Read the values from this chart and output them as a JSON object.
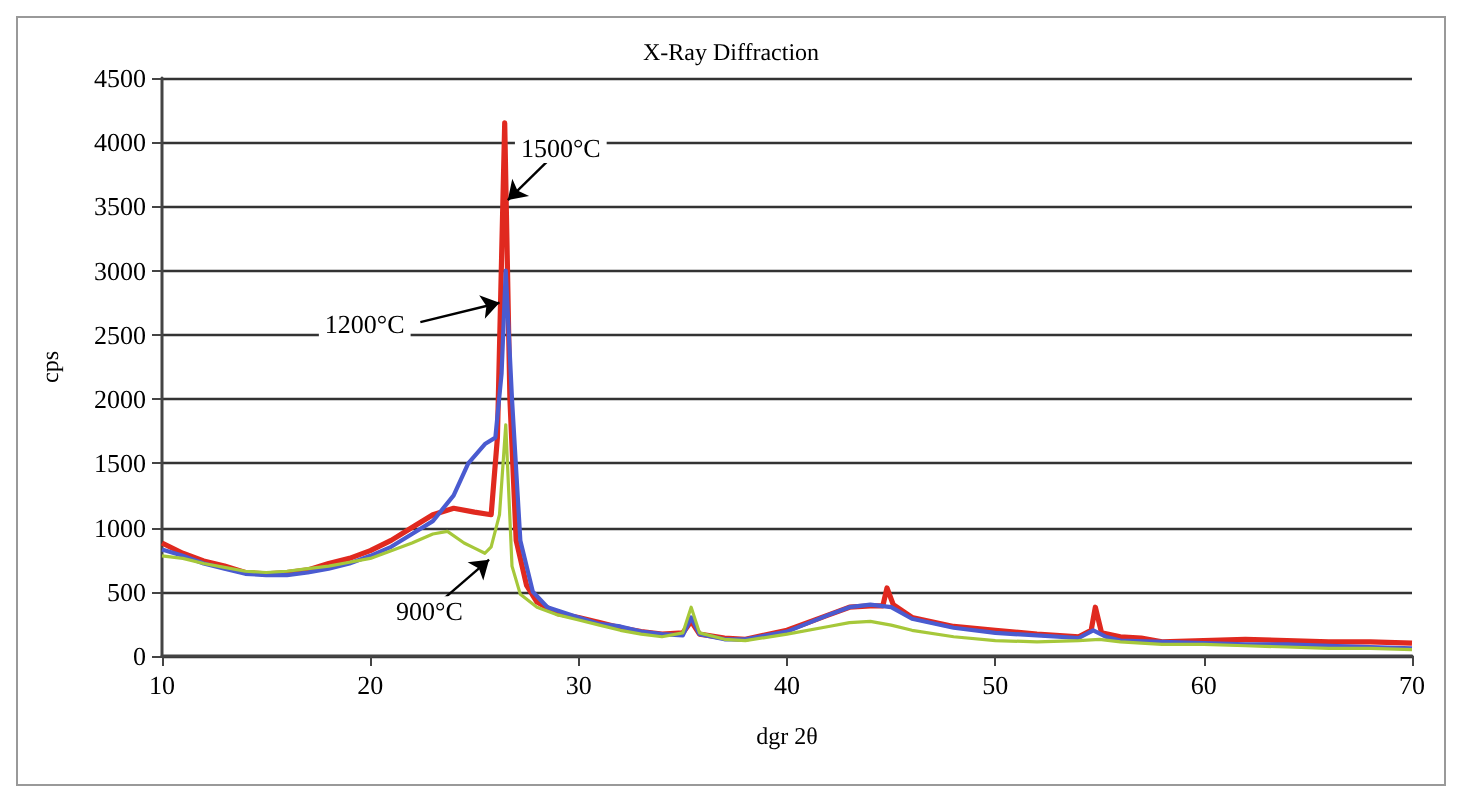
{
  "chart_data": {
    "type": "line",
    "title": "X-Ray Diffraction",
    "xlabel": "dgr 2θ",
    "ylabel": "cps",
    "xlim": [
      10,
      70
    ],
    "xticks": [
      10,
      20,
      30,
      40,
      50,
      60,
      70
    ],
    "ylim": [
      0,
      4500
    ],
    "yticks": [
      0,
      500,
      1000,
      1500,
      2000,
      2500,
      3000,
      3500,
      4000,
      4500
    ],
    "grid": "y",
    "marker": "none",
    "line_style": "solid",
    "series": [
      {
        "color": "#e0291f",
        "x": [
          10,
          11,
          12,
          13,
          14,
          15,
          16,
          17,
          18,
          19,
          20,
          21,
          22,
          23,
          24,
          25,
          25.8,
          26.1,
          26.45,
          26.7,
          27,
          27.5,
          28,
          29,
          30,
          31,
          32,
          33,
          34,
          35,
          35.4,
          35.8,
          37,
          38,
          40,
          42,
          43,
          44,
          44.6,
          44.8,
          45.1,
          46,
          48,
          50,
          52,
          54,
          54.6,
          54.8,
          55.1,
          56,
          57,
          58,
          60,
          62,
          64,
          66,
          68,
          70
        ],
        "values": [
          880,
          800,
          740,
          700,
          650,
          640,
          650,
          670,
          720,
          760,
          820,
          900,
          1000,
          1100,
          1150,
          1120,
          1100,
          1700,
          4150,
          2000,
          900,
          550,
          420,
          330,
          300,
          260,
          220,
          190,
          170,
          180,
          270,
          170,
          140,
          130,
          200,
          320,
          380,
          390,
          390,
          530,
          400,
          300,
          230,
          200,
          170,
          150,
          200,
          380,
          180,
          150,
          140,
          110,
          120,
          130,
          120,
          110,
          110,
          100
        ]
      },
      {
        "color": "#4a5bd0",
        "x": [
          10,
          11,
          12,
          13,
          14,
          15,
          16,
          17,
          18,
          19,
          20,
          21,
          22,
          23,
          24,
          24.7,
          25.5,
          26,
          26.3,
          26.5,
          26.8,
          27.2,
          27.8,
          28.5,
          30,
          31,
          32,
          33,
          34,
          35,
          35.4,
          35.8,
          37,
          38,
          40,
          42,
          43,
          44,
          45,
          46,
          48,
          50,
          52,
          54,
          54.7,
          55.3,
          56,
          58,
          60,
          62,
          64,
          66,
          68,
          70
        ],
        "values": [
          830,
          780,
          720,
          680,
          640,
          630,
          630,
          650,
          680,
          720,
          780,
          850,
          950,
          1050,
          1250,
          1500,
          1650,
          1700,
          2200,
          3000,
          2000,
          900,
          500,
          380,
          300,
          250,
          230,
          190,
          170,
          160,
          300,
          170,
          130,
          130,
          190,
          320,
          380,
          400,
          380,
          290,
          220,
          180,
          160,
          140,
          200,
          150,
          120,
          110,
          100,
          90,
          90,
          80,
          70,
          60
        ]
      },
      {
        "color": "#a6c83a",
        "x": [
          10,
          11,
          12,
          13,
          14,
          15,
          16,
          17,
          18,
          19,
          20,
          21,
          22,
          23,
          23.7,
          24.5,
          25,
          25.5,
          25.8,
          26.2,
          26.5,
          26.8,
          27.2,
          28,
          29,
          30,
          31,
          32,
          33,
          34,
          35,
          35.4,
          35.8,
          37,
          38,
          40,
          42,
          43,
          44,
          45,
          46,
          48,
          50,
          52,
          54,
          55,
          56,
          58,
          60,
          62,
          64,
          66,
          68,
          70
        ],
        "values": [
          780,
          760,
          720,
          690,
          660,
          650,
          660,
          680,
          700,
          730,
          760,
          820,
          880,
          950,
          970,
          880,
          840,
          800,
          850,
          1100,
          1800,
          700,
          480,
          380,
          320,
          280,
          240,
          200,
          170,
          150,
          180,
          380,
          180,
          130,
          120,
          170,
          230,
          260,
          270,
          240,
          200,
          150,
          120,
          110,
          120,
          130,
          110,
          90,
          90,
          80,
          70,
          60,
          60,
          50
        ]
      }
    ],
    "annotations": [
      {
        "text": "1500°C",
        "x": 26.6,
        "y": 3550
      },
      {
        "text": "1200°C",
        "x": 26.2,
        "y": 2750
      },
      {
        "text": "900°C",
        "x": 25.7,
        "y": 750
      }
    ]
  }
}
